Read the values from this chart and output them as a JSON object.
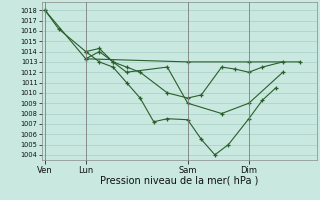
{
  "xlabel": "Pression niveau de la mer( hPa )",
  "ylim": [
    1003.5,
    1018.8
  ],
  "yticks": [
    1004,
    1005,
    1006,
    1007,
    1008,
    1009,
    1010,
    1011,
    1012,
    1013,
    1014,
    1015,
    1016,
    1017,
    1018
  ],
  "bg_color": "#c8e8e0",
  "grid_color": "#a0c8c0",
  "line_color": "#2a5e2a",
  "xtick_labels": [
    "Ven",
    "Lun",
    "Sam",
    "Dim"
  ],
  "xtick_positions": [
    0,
    12,
    42,
    60
  ],
  "vline_positions": [
    0,
    12,
    42,
    60
  ],
  "xmin": -1,
  "xmax": 80,
  "line1_x": [
    0,
    4,
    12,
    16,
    20,
    24,
    28,
    32,
    36,
    42,
    46,
    50,
    54,
    60,
    64,
    68
  ],
  "line1_y": [
    1018,
    1016.2,
    1014,
    1013,
    1012.5,
    1011,
    1009.5,
    1007.2,
    1007.5,
    1007.4,
    1005.5,
    1004.0,
    1005.0,
    1007.5,
    1009.3,
    1010.5
  ],
  "line2_x": [
    0,
    12,
    42,
    60,
    75
  ],
  "line2_y": [
    1018,
    1013.3,
    1013.0,
    1013.0,
    1013.0
  ],
  "line3_x": [
    12,
    16,
    20,
    24,
    28,
    36,
    42,
    46,
    52,
    56,
    60,
    64,
    70
  ],
  "line3_y": [
    1014.0,
    1014.3,
    1013.0,
    1012.5,
    1012.0,
    1010.0,
    1009.5,
    1009.8,
    1012.5,
    1012.3,
    1012.0,
    1012.5,
    1013.0
  ],
  "line4_x": [
    12,
    16,
    20,
    24,
    36,
    42,
    52,
    60,
    70
  ],
  "line4_y": [
    1013.3,
    1014.0,
    1013.0,
    1012.0,
    1012.5,
    1009.0,
    1008.0,
    1009.0,
    1012.0
  ]
}
